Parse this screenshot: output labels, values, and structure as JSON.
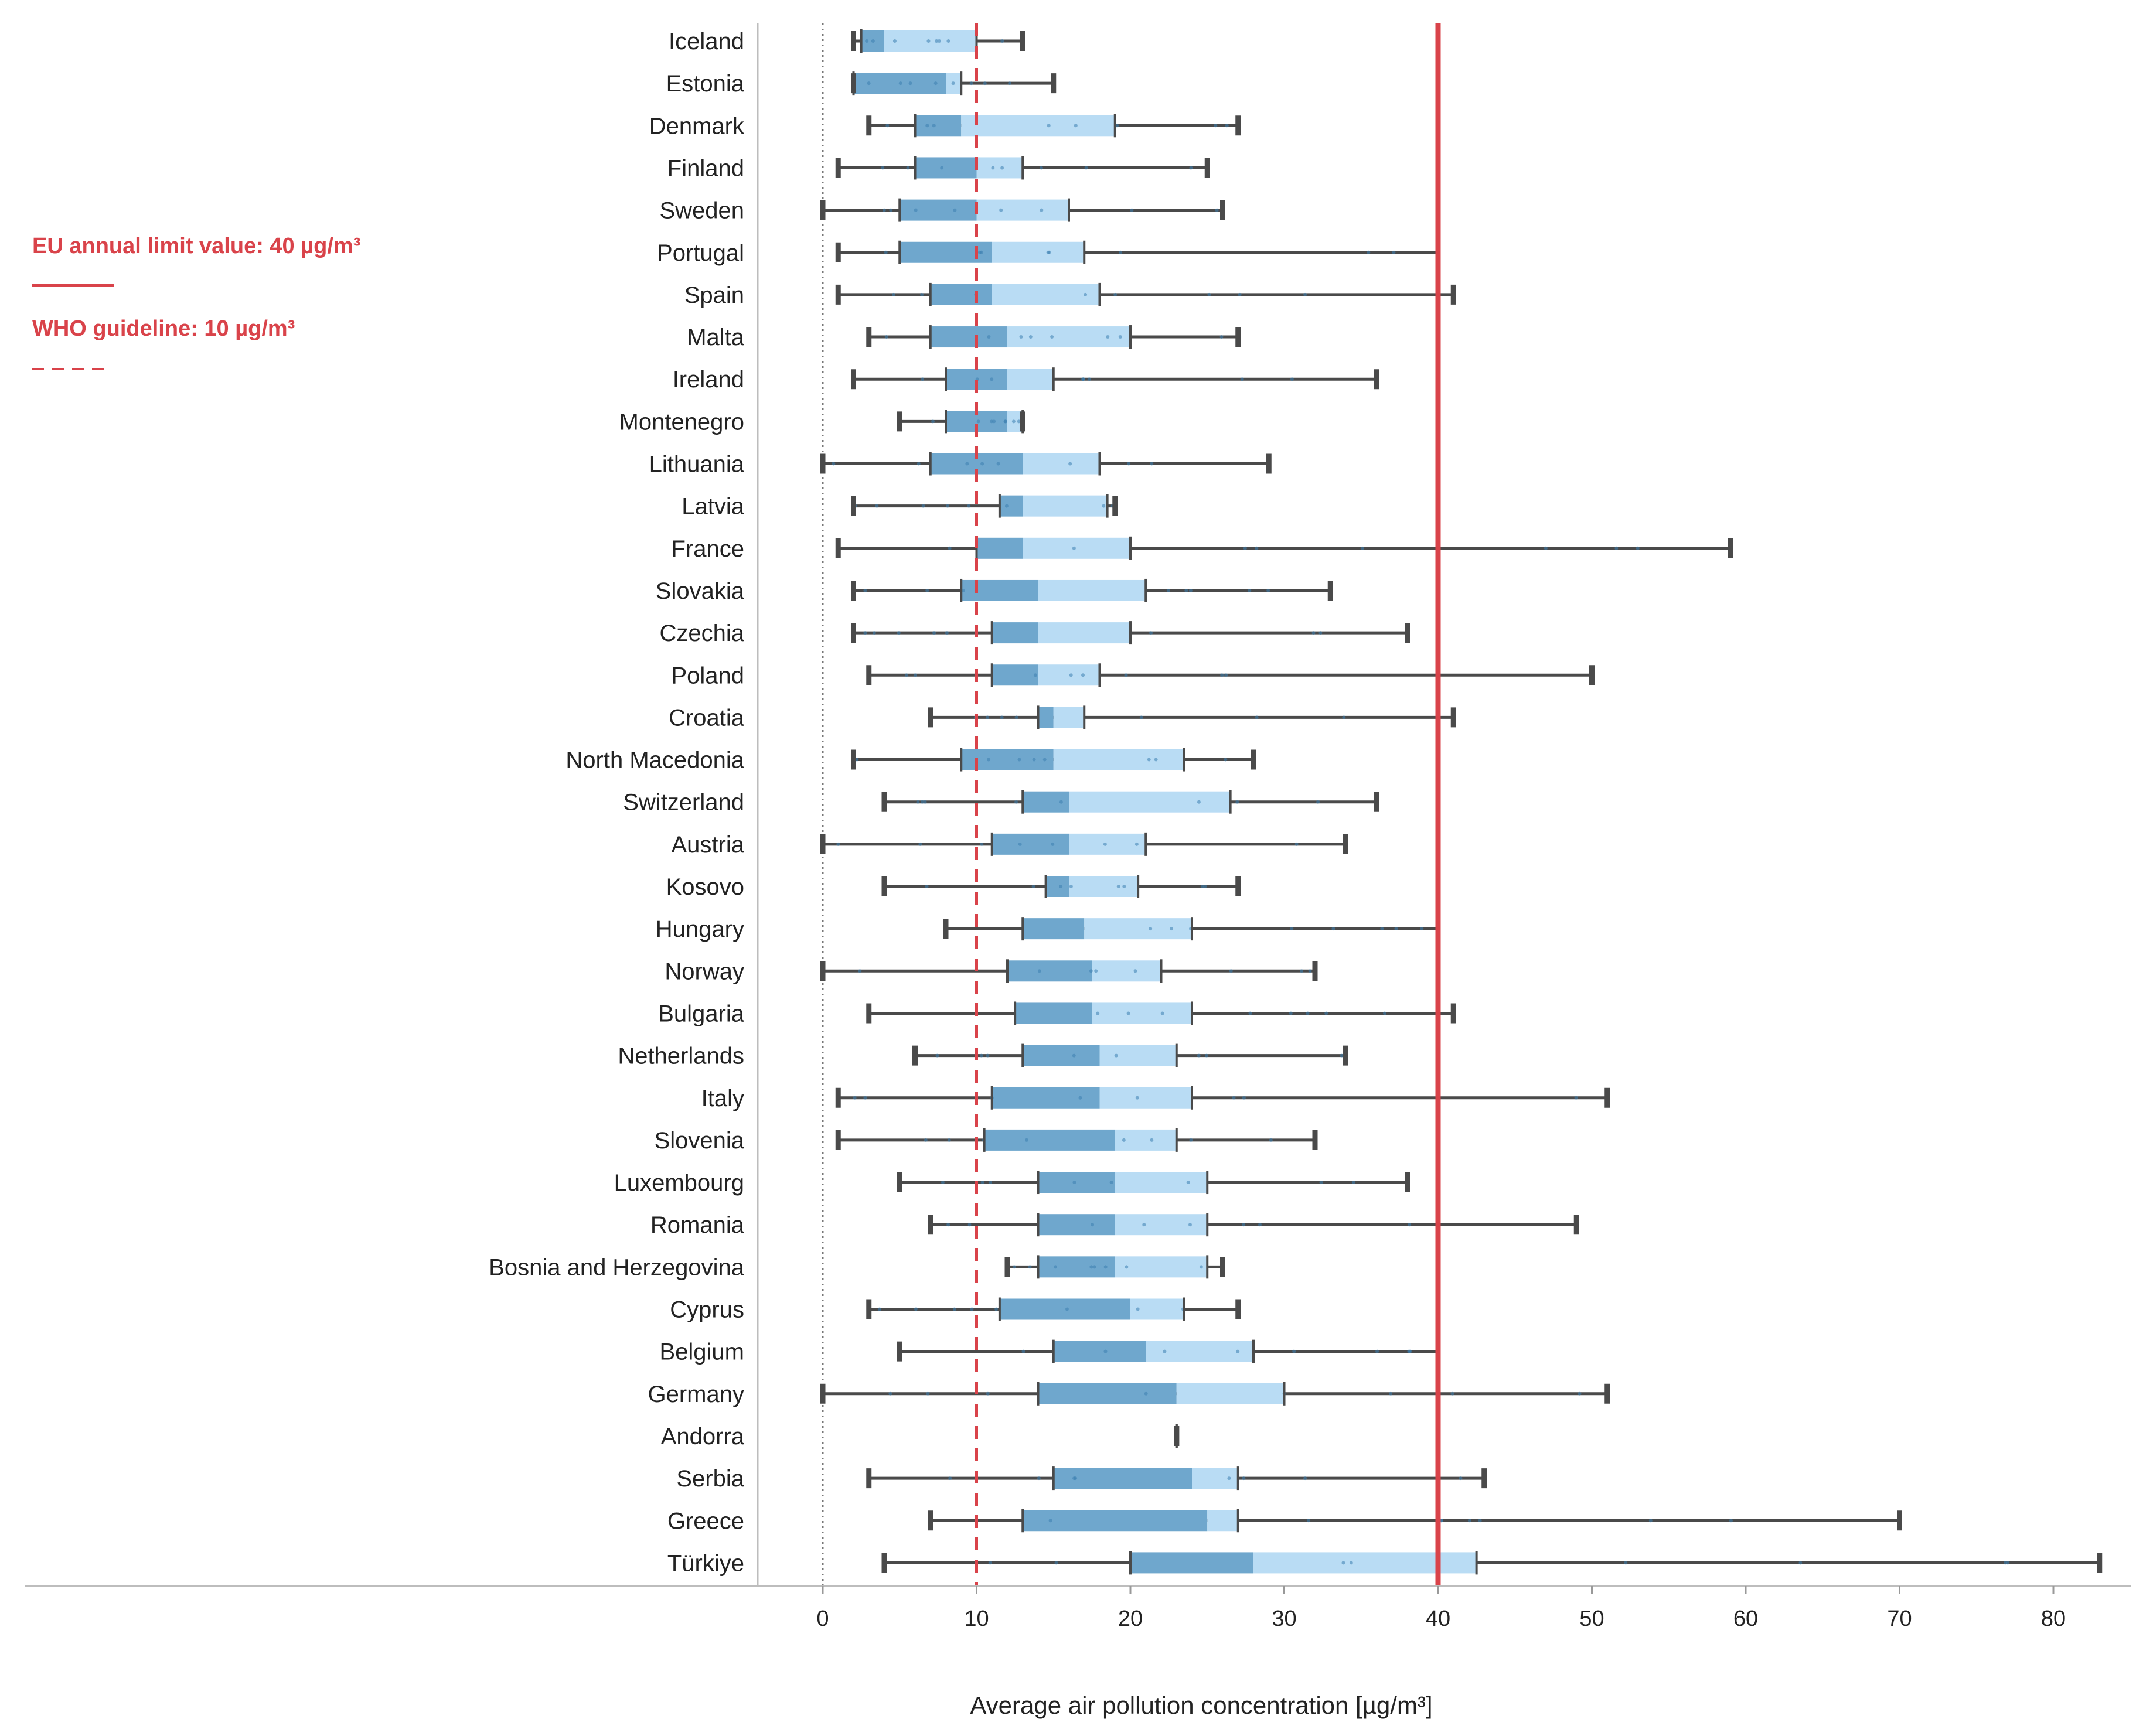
{
  "chart_data": {
    "type": "boxplot",
    "title": "",
    "xlabel": "Average air pollution concentration [µg/m³]",
    "ylabel": "",
    "xlim": [
      -4.3,
      85
    ],
    "xticks": [
      0,
      10,
      20,
      30,
      40,
      50,
      60,
      70,
      80
    ],
    "legend": {
      "eu_label": "EU annual limit value: 40 µg/m³",
      "who_label": "WHO guideline: 10 µg/m³",
      "placement": "left"
    },
    "reference_lines": [
      {
        "name": "EU annual limit value",
        "value": 40,
        "style": "solid",
        "color": "#d9434a"
      },
      {
        "name": "WHO guideline",
        "value": 10,
        "style": "dashed",
        "color": "#d9434a"
      }
    ],
    "colors": {
      "lower_box": "#6fa7cd",
      "upper_box": "#b9dcf4",
      "whisker": "#4a4a4a",
      "reference": "#d9434a",
      "points": "#3d7fb0"
    },
    "series": [
      {
        "country": "Iceland",
        "min": 2,
        "q1": 2.5,
        "median": 4,
        "q3": 10,
        "max": 13
      },
      {
        "country": "Estonia",
        "min": 2,
        "q1": 2,
        "median": 8,
        "q3": 9,
        "max": 15
      },
      {
        "country": "Denmark",
        "min": 3,
        "q1": 6,
        "median": 9,
        "q3": 19,
        "max": 27
      },
      {
        "country": "Finland",
        "min": 1,
        "q1": 6,
        "median": 10,
        "q3": 13,
        "max": 25
      },
      {
        "country": "Sweden",
        "min": 0,
        "q1": 5,
        "median": 10,
        "q3": 16,
        "max": 26
      },
      {
        "country": "Portugal",
        "min": 1,
        "q1": 5,
        "median": 11,
        "q3": 17,
        "max": 40
      },
      {
        "country": "Spain",
        "min": 1,
        "q1": 7,
        "median": 11,
        "q3": 18,
        "max": 41
      },
      {
        "country": "Malta",
        "min": 3,
        "q1": 7,
        "median": 12,
        "q3": 20,
        "max": 27
      },
      {
        "country": "Ireland",
        "min": 2,
        "q1": 8,
        "median": 12,
        "q3": 15,
        "max": 36
      },
      {
        "country": "Montenegro",
        "min": 5,
        "q1": 8,
        "median": 12,
        "q3": 13,
        "max": 13
      },
      {
        "country": "Lithuania",
        "min": 0,
        "q1": 7,
        "median": 13,
        "q3": 18,
        "max": 29
      },
      {
        "country": "Latvia",
        "min": 2,
        "q1": 11.5,
        "median": 13,
        "q3": 18.5,
        "max": 19
      },
      {
        "country": "France",
        "min": 1,
        "q1": 10,
        "median": 13,
        "q3": 20,
        "max": 59
      },
      {
        "country": "Slovakia",
        "min": 2,
        "q1": 9,
        "median": 14,
        "q3": 21,
        "max": 33
      },
      {
        "country": "Czechia",
        "min": 2,
        "q1": 11,
        "median": 14,
        "q3": 20,
        "max": 38
      },
      {
        "country": "Poland",
        "min": 3,
        "q1": 11,
        "median": 14,
        "q3": 18,
        "max": 50
      },
      {
        "country": "Croatia",
        "min": 7,
        "q1": 14,
        "median": 15,
        "q3": 17,
        "max": 41
      },
      {
        "country": "North Macedonia",
        "min": 2,
        "q1": 9,
        "median": 15,
        "q3": 23.5,
        "max": 28
      },
      {
        "country": "Switzerland",
        "min": 4,
        "q1": 13,
        "median": 16,
        "q3": 26.5,
        "max": 36
      },
      {
        "country": "Austria",
        "min": 0,
        "q1": 11,
        "median": 16,
        "q3": 21,
        "max": 34
      },
      {
        "country": "Kosovo",
        "min": 4,
        "q1": 14.5,
        "median": 16,
        "q3": 20.5,
        "max": 27
      },
      {
        "country": "Hungary",
        "min": 8,
        "q1": 13,
        "median": 17,
        "q3": 24,
        "max": 40
      },
      {
        "country": "Norway",
        "min": 0,
        "q1": 12,
        "median": 17.5,
        "q3": 22,
        "max": 32
      },
      {
        "country": "Bulgaria",
        "min": 3,
        "q1": 12.5,
        "median": 17.5,
        "q3": 24,
        "max": 41
      },
      {
        "country": "Netherlands",
        "min": 6,
        "q1": 13,
        "median": 18,
        "q3": 23,
        "max": 34
      },
      {
        "country": "Italy",
        "min": 1,
        "q1": 11,
        "median": 18,
        "q3": 24,
        "max": 51
      },
      {
        "country": "Slovenia",
        "min": 1,
        "q1": 10.5,
        "median": 19,
        "q3": 23,
        "max": 32
      },
      {
        "country": "Luxembourg",
        "min": 5,
        "q1": 14,
        "median": 19,
        "q3": 25,
        "max": 38
      },
      {
        "country": "Romania",
        "min": 7,
        "q1": 14,
        "median": 19,
        "q3": 25,
        "max": 49
      },
      {
        "country": "Bosnia and Herzegovina",
        "min": 12,
        "q1": 14,
        "median": 19,
        "q3": 25,
        "max": 26
      },
      {
        "country": "Cyprus",
        "min": 3,
        "q1": 11.5,
        "median": 20,
        "q3": 23.5,
        "max": 27
      },
      {
        "country": "Belgium",
        "min": 5,
        "q1": 15,
        "median": 21,
        "q3": 28,
        "max": 40
      },
      {
        "country": "Germany",
        "min": 0,
        "q1": 14,
        "median": 23,
        "q3": 30,
        "max": 51
      },
      {
        "country": "Andorra",
        "min": 23,
        "q1": 23,
        "median": 23,
        "q3": 23,
        "max": 23
      },
      {
        "country": "Serbia",
        "min": 3,
        "q1": 15,
        "median": 24,
        "q3": 27,
        "max": 43
      },
      {
        "country": "Greece",
        "min": 7,
        "q1": 13,
        "median": 25,
        "q3": 27,
        "max": 70
      },
      {
        "country": "Türkiye",
        "min": 4,
        "q1": 20,
        "median": 28,
        "q3": 42.5,
        "max": 83
      }
    ]
  }
}
